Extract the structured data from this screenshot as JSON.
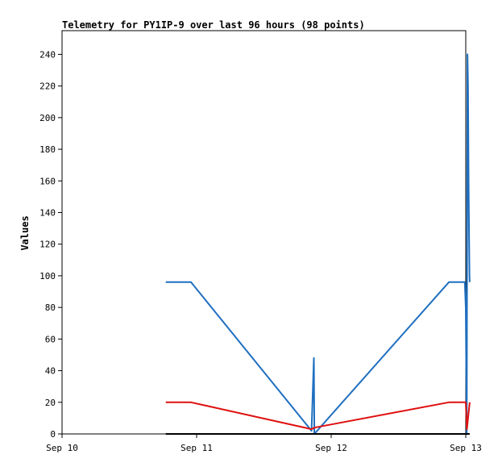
{
  "chart_data": {
    "type": "line",
    "title": "Telemetry for PY1IP-9 over last 96 hours (98 points)",
    "xlabel": "",
    "ylabel": "Values",
    "x_ticks": [
      "Sep 10",
      "Sep 11",
      "Sep 12",
      "Sep 13"
    ],
    "x_range": [
      "2023-09-10T00:00",
      "2023-09-13T00:00"
    ],
    "ylim": [
      0,
      255
    ],
    "y_ticks": [
      0,
      20,
      40,
      60,
      80,
      100,
      120,
      140,
      160,
      180,
      200,
      220,
      240
    ],
    "grid": false,
    "colors": {
      "blue": "#1f6fc0",
      "red": "#e01010",
      "black": "#000000"
    },
    "series": [
      {
        "color": "#1f6fc0",
        "points": [
          [
            "2023-09-10T18:30",
            96
          ],
          [
            "2023-09-10T23:00",
            96
          ],
          [
            "2023-09-11T20:30",
            2
          ],
          [
            "2023-09-11T20:55",
            48
          ],
          [
            "2023-09-11T21:00",
            0
          ],
          [
            "2023-09-12T21:00",
            96
          ],
          [
            "2023-09-12T23:50",
            96
          ],
          [
            "2023-09-13T00:00",
            80
          ],
          [
            "2023-09-13T00:10",
            0
          ],
          [
            "2023-09-13T00:18",
            240
          ],
          [
            "2023-09-13T00:24",
            220
          ],
          [
            "2023-09-13T00:30",
            160
          ],
          [
            "2023-09-13T00:36",
            120
          ],
          [
            "2023-09-13T00:40",
            100
          ],
          [
            "2023-09-13T00:42",
            96
          ]
        ]
      },
      {
        "color": "#e01010",
        "points": [
          [
            "2023-09-10T18:30",
            20
          ],
          [
            "2023-09-10T23:00",
            20
          ],
          [
            "2023-09-11T20:30",
            3
          ],
          [
            "2023-09-11T21:00",
            4
          ],
          [
            "2023-09-12T21:00",
            20
          ],
          [
            "2023-09-13T00:00",
            20
          ],
          [
            "2023-09-13T00:12",
            3
          ],
          [
            "2023-09-13T00:42",
            20
          ]
        ]
      },
      {
        "color": "#000000",
        "points": [
          [
            "2023-09-10T18:30",
            0
          ],
          [
            "2023-09-13T00:42",
            0
          ]
        ]
      }
    ]
  }
}
